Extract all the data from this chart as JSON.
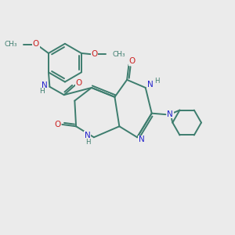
{
  "bg_color": "#ebebeb",
  "bond_color": "#3d7d6e",
  "n_color": "#2222cc",
  "o_color": "#cc2222",
  "lw": 1.4,
  "figsize": [
    3.0,
    3.0
  ],
  "dpi": 100,
  "xlim": [
    0,
    10
  ],
  "ylim": [
    0,
    10
  ]
}
